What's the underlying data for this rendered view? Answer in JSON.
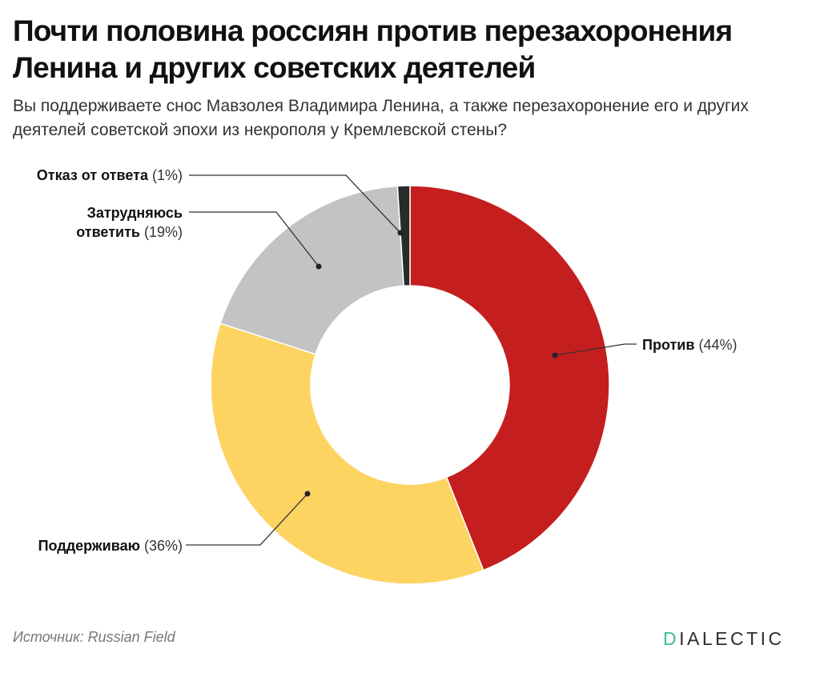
{
  "header": {
    "title": "Почти половина россиян против перезахоронения Ленина и других советских деятелей",
    "subtitle": "Вы поддерживаете снос Мавзолея Владимира Ленина, а также перезахоронение его и других деятелей советской эпохи из некрополя у Кремлевской стены?"
  },
  "chart_data": {
    "type": "pie",
    "donut": true,
    "title": "Почти половина россиян против перезахоронения Ленина и других советских деятелей",
    "slices": [
      {
        "label": "Против",
        "pct_label": "(44%)",
        "value": 44,
        "color": "#c41e1e"
      },
      {
        "label": "Поддерживаю",
        "pct_label": "(36%)",
        "value": 36,
        "color": "#fdd462"
      },
      {
        "label": "Затрудняюсь ответить",
        "label_line1": "Затрудняюсь",
        "label_line2": "ответить",
        "pct_label": "(19%)",
        "value": 19,
        "color": "#c3c3c3"
      },
      {
        "label": "Отказ от ответа",
        "pct_label": "(1%)",
        "value": 1,
        "color": "#2a2a2a"
      }
    ],
    "start": "top",
    "direction": "clockwise"
  },
  "footer": {
    "source": "Источник: Russian Field",
    "logo_first": "D",
    "logo_rest": "IALECTIC"
  }
}
